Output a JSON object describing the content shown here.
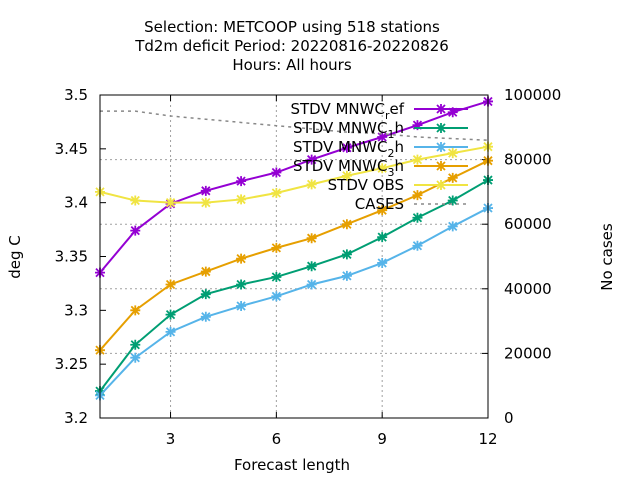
{
  "chart_data": {
    "type": "line",
    "title": [
      "Selection: METCOOP using   518 stations",
      "Td2m deficit   Period: 20220816-20220826",
      "Hours:  All hours"
    ],
    "xlabel": "Forecast length",
    "ylabel": "deg C",
    "y2label": "No cases",
    "xlim": [
      1,
      12
    ],
    "ylim": [
      3.2,
      3.5
    ],
    "y2lim": [
      0,
      100000
    ],
    "xticks": [
      3,
      6,
      9,
      12
    ],
    "yticks": [
      3.2,
      3.25,
      3.3,
      3.35,
      3.4,
      3.45,
      3.5
    ],
    "ytick_labels": [
      "3.2",
      "3.25",
      "3.3",
      "3.35",
      "3.4",
      "3.45",
      "3.5"
    ],
    "y2ticks": [
      0,
      20000,
      40000,
      60000,
      80000,
      100000
    ],
    "legend_position": "top-right",
    "x": [
      1,
      2,
      3,
      4,
      5,
      6,
      7,
      8,
      9,
      10,
      11,
      12
    ],
    "series": [
      {
        "name": "STDV MNWC_ref",
        "label_main": "STDV MNWC",
        "label_sub": "r",
        "label_tail": "ef",
        "color": "#9400d3",
        "axis": "y1",
        "values": [
          3.335,
          3.374,
          3.399,
          3.411,
          3.42,
          3.428,
          3.44,
          3.451,
          3.461,
          3.472,
          3.484,
          3.494
        ]
      },
      {
        "name": "STDV MNWC_1h",
        "label_main": "STDV MNWC",
        "label_sub": "1",
        "label_tail": "h",
        "color": "#009e73",
        "axis": "y1",
        "values": [
          3.225,
          3.268,
          3.296,
          3.315,
          3.324,
          3.331,
          3.341,
          3.352,
          3.368,
          3.386,
          3.402,
          3.421
        ]
      },
      {
        "name": "STDV MNWC_2h",
        "label_main": "STDV MNWC",
        "label_sub": "2",
        "label_tail": "h",
        "color": "#56b4e9",
        "axis": "y1",
        "values": [
          3.221,
          3.256,
          3.28,
          3.294,
          3.304,
          3.313,
          3.324,
          3.332,
          3.344,
          3.36,
          3.378,
          3.395
        ]
      },
      {
        "name": "STDV MNWC_3h",
        "label_main": "STDV MNWC",
        "label_sub": "3",
        "label_tail": "h",
        "color": "#e69f00",
        "axis": "y1",
        "values": [
          3.263,
          3.3,
          3.324,
          3.336,
          3.348,
          3.358,
          3.367,
          3.38,
          3.393,
          3.407,
          3.423,
          3.439
        ]
      },
      {
        "name": "STDV OBS",
        "label_main": "STDV OBS",
        "label_sub": "",
        "label_tail": "",
        "color": "#f0e442",
        "axis": "y1",
        "values": [
          3.41,
          3.402,
          3.4,
          3.4,
          3.403,
          3.409,
          3.417,
          3.425,
          3.432,
          3.44,
          3.446,
          3.452
        ]
      },
      {
        "name": "CASES",
        "label_main": "CASES",
        "label_sub": "",
        "label_tail": "",
        "color": "#888888",
        "axis": "y2",
        "dashed": true,
        "values": [
          95000,
          95000,
          93500,
          92500,
          91500,
          90500,
          89500,
          88500,
          88000,
          87000,
          86500,
          86000
        ]
      }
    ]
  }
}
